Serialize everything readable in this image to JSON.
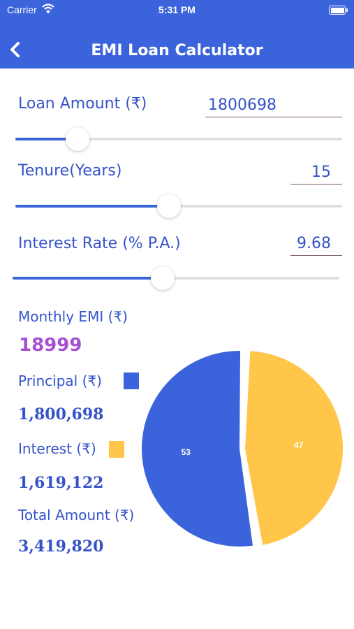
{
  "status_bar": {
    "carrier": "Carrier",
    "time": "5:31 PM"
  },
  "header": {
    "title": "EMI Loan Calculator",
    "back_icon": "chevron-left-icon"
  },
  "colors": {
    "header": "#3b63db",
    "label": "#3553c9",
    "emi": "#a64fd2",
    "principal": "#3b63db",
    "interest": "#ffc64a"
  },
  "loan_amount": {
    "label": "Loan Amount (₹)",
    "value": "1800698",
    "slider_fraction": 0.19
  },
  "tenure": {
    "label": "Tenure(Years)",
    "value": "15",
    "slider_fraction": 0.47
  },
  "interest_rate": {
    "label": "Interest Rate (% P.A.)",
    "value": "9.68",
    "slider_fraction": 0.46
  },
  "results": {
    "monthly_emi_label": "Monthly EMI (₹)",
    "monthly_emi_value": "18999",
    "principal_label": "Principal (₹)",
    "principal_value": "1,800,698",
    "interest_label": "Interest (₹)",
    "interest_value": "1,619,122",
    "total_label": "Total Amount (₹)",
    "total_value": "3,419,820"
  },
  "chart_data": {
    "type": "pie",
    "slices": [
      {
        "label": "53",
        "value": 53,
        "color": "#3b63db"
      },
      {
        "label": "47",
        "value": 47,
        "color": "#ffc64a"
      }
    ]
  }
}
